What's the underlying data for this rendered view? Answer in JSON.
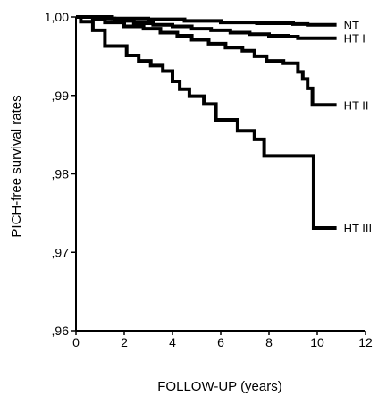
{
  "chart_data": {
    "type": "line",
    "title": "",
    "xlabel": "FOLLOW-UP (years)",
    "ylabel": "PICH-free survival rates",
    "xlim": [
      0,
      12
    ],
    "ylim": [
      0.96,
      1.0
    ],
    "x_ticks": [
      0,
      2,
      4,
      6,
      8,
      10,
      12
    ],
    "x_tick_labels": [
      "0",
      "2",
      "4",
      "6",
      "8",
      "10",
      "12"
    ],
    "y_ticks": [
      0.96,
      0.97,
      0.98,
      0.99,
      1.0
    ],
    "y_tick_labels": [
      ",96",
      ",97",
      ",98",
      ",99",
      "1,00"
    ],
    "grid": false,
    "legend": "end-of-line labels",
    "line_color": "#000000",
    "series": [
      {
        "name": "NT",
        "step": true,
        "points": [
          [
            0,
            1.0
          ],
          [
            1.5,
            0.9998
          ],
          [
            3,
            0.9997
          ],
          [
            4.5,
            0.9995
          ],
          [
            6,
            0.9993
          ],
          [
            7.5,
            0.9992
          ],
          [
            9,
            0.9991
          ],
          [
            9.6,
            0.999
          ],
          [
            10.8,
            0.999
          ]
        ]
      },
      {
        "name": "HT I",
        "step": true,
        "points": [
          [
            0,
            1.0
          ],
          [
            0.8,
            0.9998
          ],
          [
            1.6,
            0.9995
          ],
          [
            2.4,
            0.9992
          ],
          [
            3.2,
            0.999
          ],
          [
            4,
            0.9988
          ],
          [
            4.8,
            0.9985
          ],
          [
            5.6,
            0.9983
          ],
          [
            6.4,
            0.998
          ],
          [
            7.2,
            0.9978
          ],
          [
            8,
            0.9976
          ],
          [
            8.8,
            0.9975
          ],
          [
            9.2,
            0.9973
          ],
          [
            10.8,
            0.9973
          ]
        ]
      },
      {
        "name": "HT II",
        "step": true,
        "points": [
          [
            0,
            1.0
          ],
          [
            0.7,
            0.9997
          ],
          [
            1.2,
            0.9993
          ],
          [
            2,
            0.9988
          ],
          [
            2.8,
            0.9985
          ],
          [
            3.5,
            0.998
          ],
          [
            4.2,
            0.9976
          ],
          [
            4.8,
            0.9971
          ],
          [
            5.5,
            0.9966
          ],
          [
            6.2,
            0.9961
          ],
          [
            6.9,
            0.9957
          ],
          [
            7.4,
            0.995
          ],
          [
            7.9,
            0.9944
          ],
          [
            8.6,
            0.9941
          ],
          [
            9.2,
            0.993
          ],
          [
            9.4,
            0.9921
          ],
          [
            9.6,
            0.9909
          ],
          [
            9.8,
            0.9888
          ],
          [
            10.8,
            0.9888
          ]
        ]
      },
      {
        "name": "HT III",
        "step": true,
        "points": [
          [
            0,
            1.0
          ],
          [
            0.2,
            0.9994
          ],
          [
            0.7,
            0.9983
          ],
          [
            1.2,
            0.9963
          ],
          [
            2.1,
            0.9951
          ],
          [
            2.6,
            0.9944
          ],
          [
            3.1,
            0.9938
          ],
          [
            3.6,
            0.9931
          ],
          [
            4,
            0.9918
          ],
          [
            4.3,
            0.9908
          ],
          [
            4.7,
            0.9899
          ],
          [
            5.3,
            0.9889
          ],
          [
            5.8,
            0.9869
          ],
          [
            6.7,
            0.9855
          ],
          [
            7.4,
            0.9844
          ],
          [
            7.8,
            0.9823
          ],
          [
            9.8,
            0.9823
          ],
          [
            9.85,
            0.9731
          ],
          [
            10.8,
            0.9731
          ]
        ]
      }
    ]
  }
}
